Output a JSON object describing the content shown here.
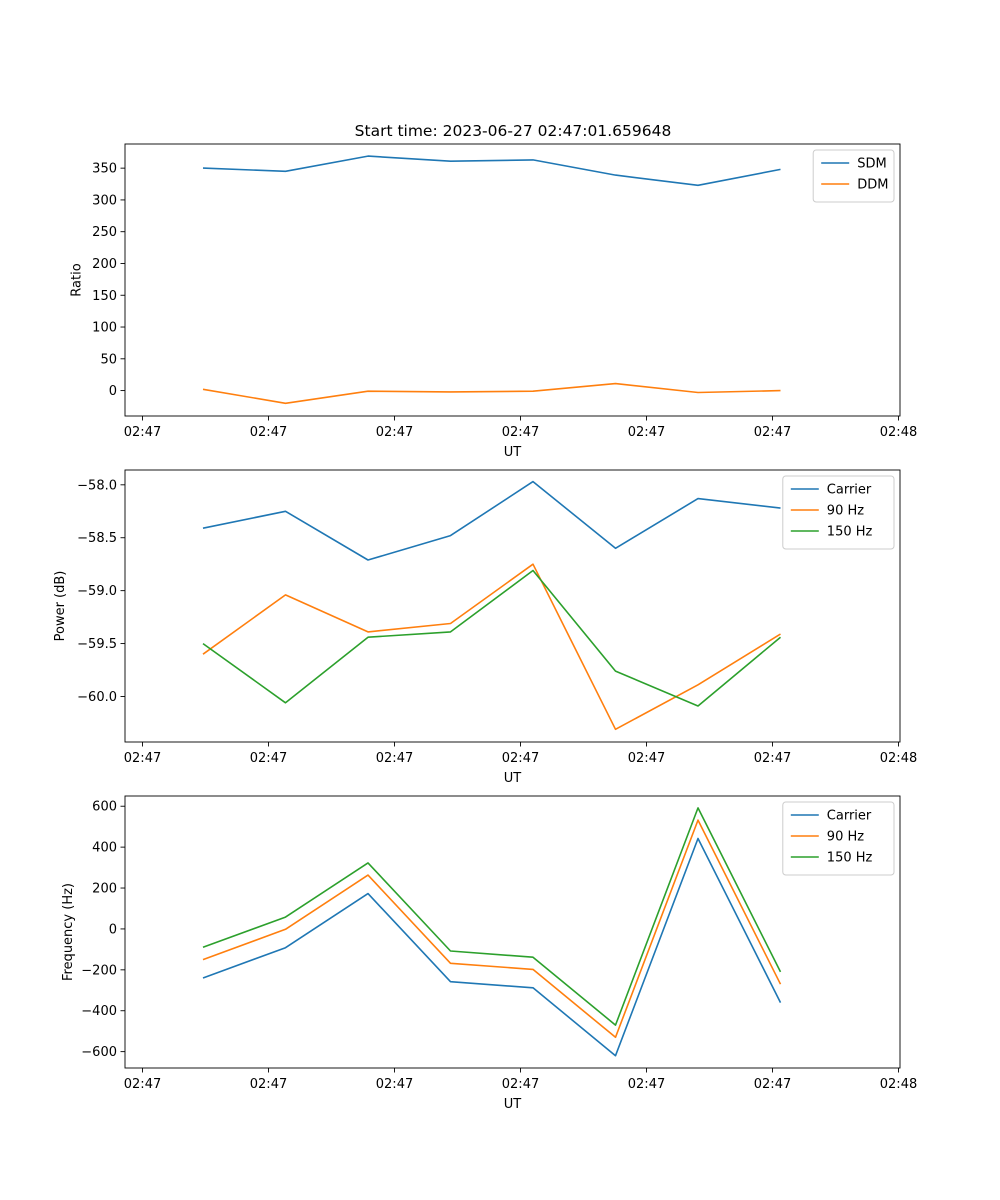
{
  "figure": {
    "title": "Start time: 2023-06-27 02:47:01.659648"
  },
  "colors": {
    "blue": "#1f77b4",
    "orange": "#ff7f0e",
    "green": "#2ca02c"
  },
  "chart_data": [
    {
      "type": "line",
      "title": "Start time: 2023-06-27 02:47:01.659648",
      "xlabel": "UT",
      "ylabel": "Ratio",
      "x_tick_labels": [
        "02:47",
        "02:47",
        "02:47",
        "02:47",
        "02:47",
        "02:47",
        "02:48"
      ],
      "y_ticks": [
        0,
        50,
        100,
        150,
        200,
        250,
        300,
        350
      ],
      "ylim": [
        -40,
        388
      ],
      "grid": false,
      "legend_position": "top-right",
      "series": [
        {
          "name": "SDM",
          "color": "#1f77b4",
          "values": [
            350,
            345,
            369,
            361,
            363,
            339,
            323,
            348
          ]
        },
        {
          "name": "DDM",
          "color": "#ff7f0e",
          "values": [
            2,
            -20,
            -1,
            -2,
            -1,
            11,
            -3,
            0
          ]
        }
      ]
    },
    {
      "type": "line",
      "title": "",
      "xlabel": "UT",
      "ylabel": "Power (dB)",
      "x_tick_labels": [
        "02:47",
        "02:47",
        "02:47",
        "02:47",
        "02:47",
        "02:47",
        "02:48"
      ],
      "y_ticks": [
        -60.0,
        -59.5,
        -59.0,
        -58.5,
        -58.0
      ],
      "y_tick_labels": [
        "−60.0",
        "−59.5",
        "−59.0",
        "−58.5",
        "−58.0"
      ],
      "ylim": [
        -60.43,
        -57.86
      ],
      "grid": false,
      "legend_position": "top-right",
      "series": [
        {
          "name": "Carrier",
          "color": "#1f77b4",
          "values": [
            -58.41,
            -58.25,
            -58.71,
            -58.48,
            -57.97,
            -58.6,
            -58.13,
            -58.22
          ]
        },
        {
          "name": "90 Hz",
          "color": "#ff7f0e",
          "values": [
            -59.6,
            -59.04,
            -59.39,
            -59.31,
            -58.75,
            -60.31,
            -59.89,
            -59.41
          ]
        },
        {
          "name": "150 Hz",
          "color": "#2ca02c",
          "values": [
            -59.5,
            -60.06,
            -59.44,
            -59.39,
            -58.81,
            -59.76,
            -60.09,
            -59.44
          ]
        }
      ]
    },
    {
      "type": "line",
      "title": "",
      "xlabel": "UT",
      "ylabel": "Frequency (Hz)",
      "x_tick_labels": [
        "02:47",
        "02:47",
        "02:47",
        "02:47",
        "02:47",
        "02:47",
        "02:48"
      ],
      "y_ticks": [
        -600,
        -400,
        -200,
        0,
        200,
        400,
        600
      ],
      "y_tick_labels": [
        "−600",
        "−400",
        "−200",
        "0",
        "200",
        "400",
        "600"
      ],
      "ylim": [
        -680,
        650
      ],
      "grid": false,
      "legend_position": "top-right",
      "series": [
        {
          "name": "Carrier",
          "color": "#1f77b4",
          "values": [
            -240,
            -92,
            173,
            -258,
            -288,
            -620,
            442,
            -360
          ]
        },
        {
          "name": "90 Hz",
          "color": "#ff7f0e",
          "values": [
            -150,
            -2,
            263,
            -168,
            -198,
            -530,
            532,
            -270
          ]
        },
        {
          "name": "150 Hz",
          "color": "#2ca02c",
          "values": [
            -90,
            58,
            323,
            -108,
            -138,
            -470,
            592,
            -210
          ]
        }
      ]
    }
  ]
}
